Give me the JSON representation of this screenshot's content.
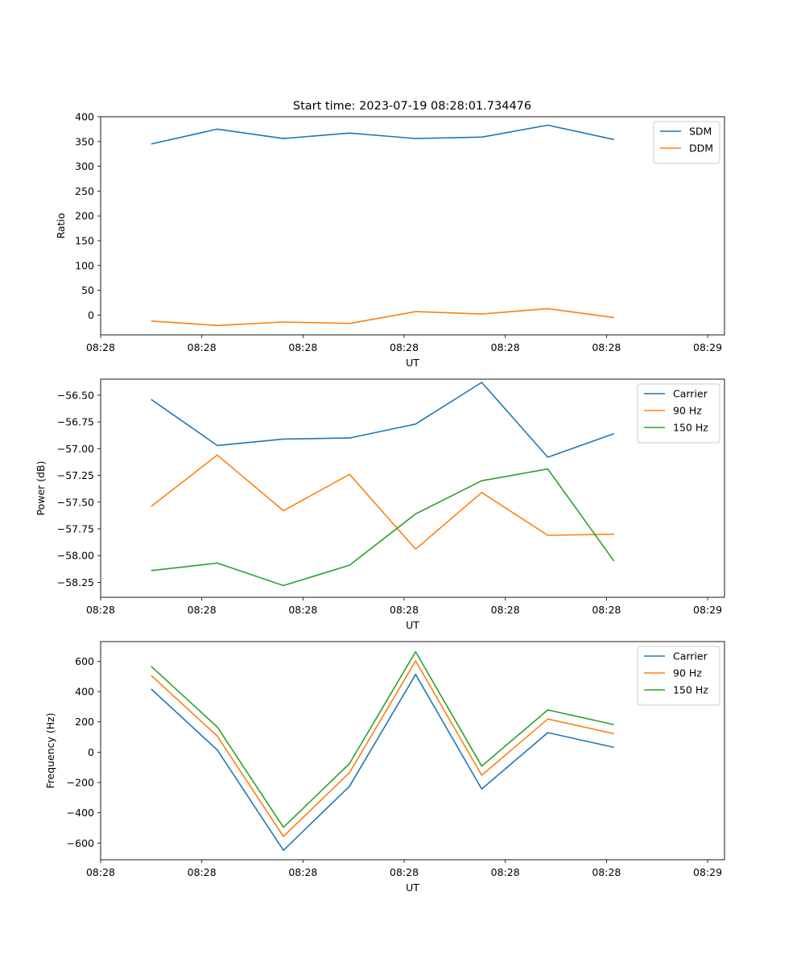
{
  "title": "Start time: 2023-07-19 08:28:01.734476",
  "colors": {
    "blue": "#1f77b4",
    "orange": "#ff7f0e",
    "green": "#2ca02c"
  },
  "chart_data": [
    {
      "type": "line",
      "xlabel": "UT",
      "ylabel": "Ratio",
      "ylim": [
        -40,
        400
      ],
      "yticks": [
        0,
        50,
        100,
        150,
        200,
        250,
        300,
        350,
        400
      ],
      "ytick_labels": [
        "0",
        "50",
        "100",
        "150",
        "200",
        "250",
        "300",
        "350",
        "400"
      ],
      "xlim": [
        0,
        9.25
      ],
      "xticks": [
        0,
        1.5,
        3,
        4.5,
        6,
        7.5,
        9
      ],
      "xtick_labels": [
        "08:28",
        "08:28",
        "08:28",
        "08:28",
        "08:28",
        "08:28",
        "08:29"
      ],
      "x": [
        0.75,
        1.73,
        2.71,
        3.69,
        4.67,
        5.65,
        6.63,
        7.61
      ],
      "legend_position": "top-right",
      "series": [
        {
          "name": "SDM",
          "color": "#1f77b4",
          "values": [
            345,
            375,
            356,
            367,
            356,
            359,
            383,
            354
          ]
        },
        {
          "name": "DDM",
          "color": "#ff7f0e",
          "values": [
            -12,
            -21,
            -14,
            -17,
            7,
            2,
            13,
            -5
          ]
        }
      ]
    },
    {
      "type": "line",
      "xlabel": "UT",
      "ylabel": "Power (dB)",
      "ylim": [
        -58.39,
        -56.35
      ],
      "yticks": [
        -58.25,
        -58.0,
        -57.75,
        -57.5,
        -57.25,
        -57.0,
        -56.75,
        -56.5
      ],
      "ytick_labels": [
        "−58.25",
        "−58.00",
        "−57.75",
        "−57.50",
        "−57.25",
        "−57.00",
        "−56.75",
        "−56.50"
      ],
      "xlim": [
        0,
        9.25
      ],
      "xticks": [
        0,
        1.5,
        3,
        4.5,
        6,
        7.5,
        9
      ],
      "xtick_labels": [
        "08:28",
        "08:28",
        "08:28",
        "08:28",
        "08:28",
        "08:28",
        "08:29"
      ],
      "x": [
        0.75,
        1.73,
        2.71,
        3.69,
        4.67,
        5.65,
        6.63,
        7.61
      ],
      "legend_position": "top-right",
      "series": [
        {
          "name": "Carrier",
          "color": "#1f77b4",
          "values": [
            -56.54,
            -56.97,
            -56.91,
            -56.9,
            -56.77,
            -56.38,
            -57.08,
            -56.86
          ]
        },
        {
          "name": "90 Hz",
          "color": "#ff7f0e",
          "values": [
            -57.54,
            -57.06,
            -57.58,
            -57.24,
            -57.94,
            -57.41,
            -57.81,
            -57.8
          ]
        },
        {
          "name": "150 Hz",
          "color": "#2ca02c",
          "values": [
            -58.14,
            -58.07,
            -58.28,
            -58.09,
            -57.61,
            -57.3,
            -57.19,
            -58.05
          ]
        }
      ]
    },
    {
      "type": "line",
      "xlabel": "UT",
      "ylabel": "Frequency (Hz)",
      "ylim": [
        -710,
        730
      ],
      "yticks": [
        -600,
        -400,
        -200,
        0,
        200,
        400,
        600
      ],
      "ytick_labels": [
        "−600",
        "−400",
        "−200",
        "0",
        "200",
        "400",
        "600"
      ],
      "xlim": [
        0,
        9.25
      ],
      "xticks": [
        0,
        1.5,
        3,
        4.5,
        6,
        7.5,
        9
      ],
      "xtick_labels": [
        "08:28",
        "08:28",
        "08:28",
        "08:28",
        "08:28",
        "08:28",
        "08:29"
      ],
      "x": [
        0.75,
        1.73,
        2.71,
        3.69,
        4.67,
        5.65,
        6.63,
        7.61
      ],
      "legend_position": "top-right",
      "series": [
        {
          "name": "Carrier",
          "color": "#1f77b4",
          "values": [
            417,
            15,
            -648,
            -225,
            513,
            -243,
            129,
            32
          ]
        },
        {
          "name": "90 Hz",
          "color": "#ff7f0e",
          "values": [
            507,
            106,
            -556,
            -135,
            603,
            -152,
            219,
            122
          ]
        },
        {
          "name": "150 Hz",
          "color": "#2ca02c",
          "values": [
            567,
            166,
            -496,
            -75,
            663,
            -92,
            279,
            182
          ]
        }
      ]
    }
  ]
}
